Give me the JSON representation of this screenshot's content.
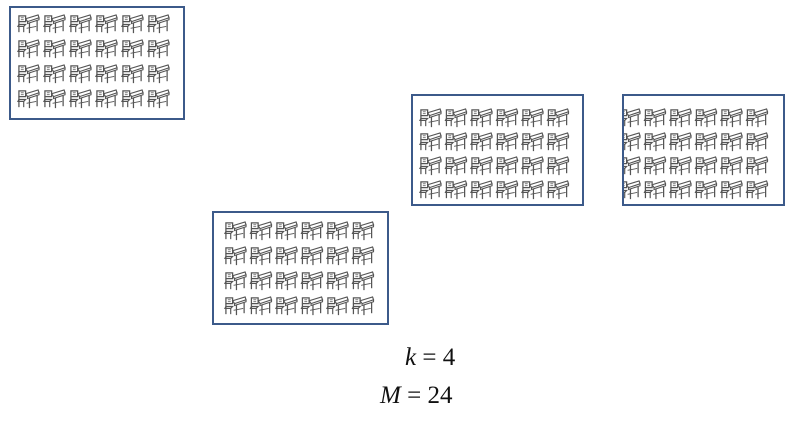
{
  "equations": {
    "k": {
      "var": "k",
      "op": " = ",
      "value": "4"
    },
    "m": {
      "var": "M",
      "op": " = ",
      "value": "24"
    }
  },
  "groups": [
    {
      "rows": 4,
      "cols": 6,
      "icon": "school-desk-icon"
    },
    {
      "rows": 4,
      "cols": 6,
      "icon": "school-desk-icon"
    },
    {
      "rows": 4,
      "cols": 6,
      "icon": "school-desk-icon"
    },
    {
      "rows": 4,
      "cols": 6,
      "icon": "school-desk-icon"
    }
  ],
  "colors": {
    "frame": "#3c5a8a",
    "icon": "#555555"
  }
}
